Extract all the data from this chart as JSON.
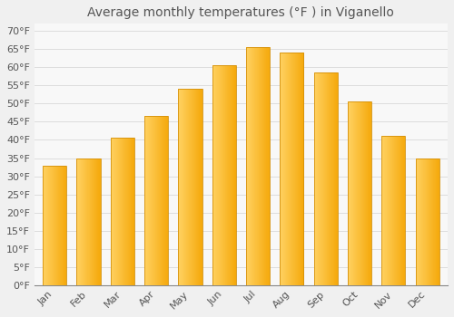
{
  "title": "Average monthly temperatures (°F ) in Viganello",
  "months": [
    "Jan",
    "Feb",
    "Mar",
    "Apr",
    "May",
    "Jun",
    "Jul",
    "Aug",
    "Sep",
    "Oct",
    "Nov",
    "Dec"
  ],
  "values": [
    33,
    35,
    40.5,
    46.5,
    54,
    60.5,
    65.5,
    64,
    58.5,
    50.5,
    41,
    35
  ],
  "bar_color_left": "#FFD060",
  "bar_color_right": "#F5A800",
  "bar_edge_color": "#D4900A",
  "background_color": "#F0F0F0",
  "plot_bg_color": "#F8F8F8",
  "grid_color": "#DDDDDD",
  "ytick_labels": [
    "0°F",
    "5°F",
    "10°F",
    "15°F",
    "20°F",
    "25°F",
    "30°F",
    "35°F",
    "40°F",
    "45°F",
    "50°F",
    "55°F",
    "60°F",
    "65°F",
    "70°F"
  ],
  "ytick_values": [
    0,
    5,
    10,
    15,
    20,
    25,
    30,
    35,
    40,
    45,
    50,
    55,
    60,
    65,
    70
  ],
  "ylim": [
    0,
    72
  ],
  "title_fontsize": 10,
  "tick_fontsize": 8,
  "text_color": "#555555"
}
